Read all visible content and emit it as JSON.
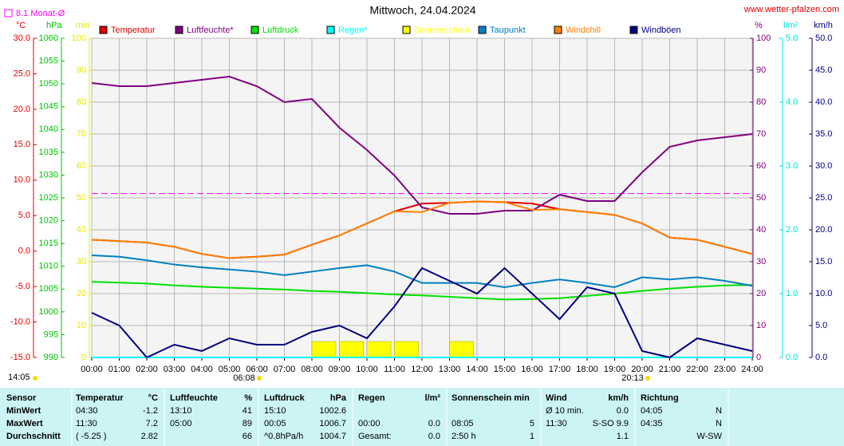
{
  "site": "www.wetter-pfalzen.com",
  "chart_data": {
    "type": "line",
    "title": "Mittwoch, 24.04.2024",
    "month_avg": {
      "value": 8.1,
      "label": "8.1 Monat-Ø",
      "axis": "°C",
      "color": "#ff00ff"
    },
    "sunrise": "06:08",
    "sunset": "20:13",
    "moon": "14:05",
    "xlim": [
      0,
      24
    ],
    "xticks": [
      {
        "value": 0,
        "label": "00:00"
      },
      {
        "value": 1,
        "label": "01:00"
      },
      {
        "value": 2,
        "label": "02:00"
      },
      {
        "value": 3,
        "label": "03:00"
      },
      {
        "value": 4,
        "label": "04:00"
      },
      {
        "value": 5,
        "label": "05:00"
      },
      {
        "value": 6,
        "label": "06:00"
      },
      {
        "value": 7,
        "label": "07:00"
      },
      {
        "value": 8,
        "label": "08:00"
      },
      {
        "value": 9,
        "label": "09:00"
      },
      {
        "value": 10,
        "label": "10:00"
      },
      {
        "value": 11,
        "label": "11:00"
      },
      {
        "value": 12,
        "label": "12:00"
      },
      {
        "value": 13,
        "label": "13:00"
      },
      {
        "value": 14,
        "label": "14:00"
      },
      {
        "value": 15,
        "label": "15:00"
      },
      {
        "value": 16,
        "label": "16:00"
      },
      {
        "value": 17,
        "label": "17:00"
      },
      {
        "value": 18,
        "label": "18:00"
      },
      {
        "value": 19,
        "label": "19:00"
      },
      {
        "value": 20,
        "label": "20:00"
      },
      {
        "value": 21,
        "label": "21:00"
      },
      {
        "value": 22,
        "label": "22:00"
      },
      {
        "value": 23,
        "label": "23:00"
      },
      {
        "value": 24,
        "label": "24:00"
      }
    ],
    "x": [
      0,
      1,
      2,
      3,
      4,
      5,
      6,
      7,
      8,
      9,
      10,
      11,
      12,
      13,
      14,
      15,
      16,
      17,
      18,
      19,
      20,
      21,
      22,
      23,
      24
    ],
    "grid": true,
    "axes": [
      {
        "label": "°C",
        "side": "left",
        "color": "#e00000",
        "lim": [
          -15,
          30
        ],
        "ticks": [
          {
            "value": -15,
            "label": "-15.0"
          },
          {
            "value": -10,
            "label": "-10.0"
          },
          {
            "value": -5,
            "label": "-5.0"
          },
          {
            "value": 0,
            "label": "0.0"
          },
          {
            "value": 5,
            "label": "5.0"
          },
          {
            "value": 10,
            "label": "10.0"
          },
          {
            "value": 15,
            "label": "15.0"
          },
          {
            "value": 20,
            "label": "20.0"
          },
          {
            "value": 25,
            "label": "25.0"
          },
          {
            "value": 30,
            "label": "30.0"
          }
        ]
      },
      {
        "label": "hPa",
        "side": "left",
        "color": "#00c000",
        "lim": [
          990,
          1060
        ],
        "ticks": [
          990,
          995,
          1000,
          1005,
          1010,
          1015,
          1020,
          1025,
          1030,
          1035,
          1040,
          1045,
          1050,
          1055,
          1060
        ]
      },
      {
        "label": "min",
        "side": "left",
        "color": "#e8e800",
        "lim": [
          0,
          100
        ],
        "ticks": [
          0,
          10,
          20,
          30,
          40,
          50,
          60,
          70,
          80,
          90,
          100
        ]
      },
      {
        "label": "%",
        "side": "right",
        "color": "#800080",
        "lim": [
          0,
          100
        ],
        "ticks": [
          0,
          10,
          20,
          30,
          40,
          50,
          60,
          70,
          80,
          90,
          100
        ]
      },
      {
        "label": "l/m²",
        "side": "right",
        "color": "#00e0e0",
        "lim": [
          0,
          5
        ],
        "ticks": [
          {
            "value": 0,
            "label": "0.0"
          },
          {
            "value": 1,
            "label": "1.0"
          },
          {
            "value": 2,
            "label": "2.0"
          },
          {
            "value": 3,
            "label": "3.0"
          },
          {
            "value": 4,
            "label": "4.0"
          },
          {
            "value": 5,
            "label": "5.0"
          }
        ]
      },
      {
        "label": "km/h",
        "side": "right",
        "color": "#000080",
        "lim": [
          0,
          50
        ],
        "ticks": [
          {
            "value": 0,
            "label": "0.0"
          },
          {
            "value": 5,
            "label": "5.0"
          },
          {
            "value": 10,
            "label": "10.0"
          },
          {
            "value": 15,
            "label": "15.0"
          },
          {
            "value": 20,
            "label": "20.0"
          },
          {
            "value": 25,
            "label": "25.0"
          },
          {
            "value": 30,
            "label": "30.0"
          },
          {
            "value": 35,
            "label": "35.0"
          },
          {
            "value": 40,
            "label": "40.0"
          },
          {
            "value": 45,
            "label": "45.0"
          },
          {
            "value": 50,
            "label": "50.0"
          }
        ]
      }
    ],
    "series": [
      {
        "name": "Temperatur",
        "color": "#e00000",
        "axis": "°C",
        "type": "line",
        "values": [
          1.6,
          1.4,
          1.2,
          0.6,
          -0.4,
          -1.0,
          -0.8,
          -0.5,
          0.9,
          2.2,
          3.9,
          5.6,
          6.7,
          6.8,
          7.0,
          6.9,
          6.7,
          5.9,
          5.5,
          5.1,
          3.9,
          1.9,
          1.6,
          0.6,
          -0.4
        ]
      },
      {
        "name": "Luftfeuchte*",
        "color": "#800080",
        "axis": "%",
        "type": "line",
        "values": [
          86,
          85,
          85,
          86,
          87,
          88,
          85,
          80,
          81,
          72,
          65,
          57,
          47,
          45,
          45,
          46,
          46,
          51,
          49,
          49,
          58,
          66,
          68,
          69,
          70
        ]
      },
      {
        "name": "Luftdruck",
        "color": "#00e000",
        "axis": "hPa",
        "type": "line",
        "values": [
          1006.6,
          1006.4,
          1006.2,
          1005.8,
          1005.5,
          1005.3,
          1005.1,
          1004.9,
          1004.6,
          1004.4,
          1004.1,
          1003.8,
          1003.6,
          1003.3,
          1003.0,
          1002.7,
          1002.8,
          1003.0,
          1003.5,
          1004.0,
          1004.6,
          1005.1,
          1005.5,
          1005.8,
          1005.9
        ]
      },
      {
        "name": "Regen*",
        "color": "#00ffff",
        "axis": "l/m²",
        "type": "line",
        "values": [
          0,
          0,
          0,
          0,
          0,
          0,
          0,
          0,
          0,
          0,
          0,
          0,
          0,
          0,
          0,
          0,
          0,
          0,
          0,
          0,
          0,
          0,
          0,
          0,
          0
        ]
      },
      {
        "name": "Sonnenschein",
        "color": "#ffff00",
        "axis": "min",
        "type": "bar",
        "values": [
          0,
          0,
          0,
          0,
          0,
          0,
          0,
          0,
          5,
          5,
          5,
          5,
          0,
          5,
          0,
          0,
          0,
          0,
          0,
          0,
          0,
          0,
          0,
          0,
          0
        ]
      },
      {
        "name": "Taupunkt",
        "color": "#0080c0",
        "axis": "°C",
        "type": "line",
        "values": [
          -0.6,
          -0.8,
          -1.3,
          -1.9,
          -2.3,
          -2.6,
          -2.9,
          -3.4,
          -2.9,
          -2.4,
          -2.0,
          -2.9,
          -4.5,
          -4.5,
          -4.5,
          -5.1,
          -4.5,
          -4.0,
          -4.5,
          -5.1,
          -3.7,
          -4.0,
          -3.7,
          -4.2,
          -4.9
        ]
      },
      {
        "name": "Windchill",
        "color": "#ff8000",
        "axis": "°C",
        "type": "line",
        "values": [
          1.6,
          1.4,
          1.2,
          0.6,
          -0.4,
          -1.0,
          -0.8,
          -0.5,
          0.9,
          2.2,
          3.9,
          5.6,
          5.5,
          6.8,
          7.0,
          6.9,
          5.8,
          5.9,
          5.5,
          5.1,
          3.9,
          1.9,
          1.6,
          0.6,
          -0.4
        ]
      },
      {
        "name": "Windböen",
        "color": "#000080",
        "axis": "km/h",
        "type": "line",
        "values": [
          7,
          5,
          0,
          2,
          1,
          3,
          2,
          2,
          4,
          5,
          3,
          8,
          14,
          12,
          10,
          14,
          10,
          6,
          11,
          10,
          1,
          0,
          3,
          2,
          1
        ]
      }
    ]
  },
  "table": {
    "header": {
      "sensor": "Sensor",
      "temp_time": "Temperatur",
      "temp": "°C",
      "hum_time": "Luftfeuchte",
      "hum": "%",
      "press_time": "Luftdruck",
      "press": "hPa",
      "rain_time": "Regen",
      "rain": "l/m²",
      "sun_time": "Sonnenschein min",
      "wind_time": "Wind",
      "wind": "km/h",
      "dir_time": "Richtung"
    },
    "rows": [
      {
        "sensor": "MinWert",
        "temp_time": "04:30",
        "temp": "-1.2",
        "hum_time": "13:10",
        "hum": "41",
        "press_time": "15:10",
        "press": "1002.6",
        "wind_time": "Ø 10 min.",
        "wind": "0.0",
        "dir_time": "04:05",
        "dir": "N"
      },
      {
        "sensor": "MaxWert",
        "temp_time": "11:30",
        "temp": "7.2",
        "hum_time": "05:00",
        "hum": "89",
        "press_time": "00:05",
        "press": "1006.7",
        "rain_time": "00:00",
        "rain": "0.0",
        "sun_time": "08:05",
        "sun": "5",
        "wind_time": "11:30",
        "wind": "S-SO 9.9",
        "dir_time": "04:35",
        "dir": "N"
      },
      {
        "sensor": "Durchschnitt",
        "temp_time": "( -5.25 )",
        "temp": "2.82",
        "hum": "66",
        "press_time": "^0.8hPa/h",
        "press": "1004.7",
        "rain_time": "Gesamt:",
        "rain": "0.0",
        "sun_time": "2:50 h",
        "sun": "1",
        "wind": "1.1",
        "dir": "W-SW"
      }
    ]
  }
}
